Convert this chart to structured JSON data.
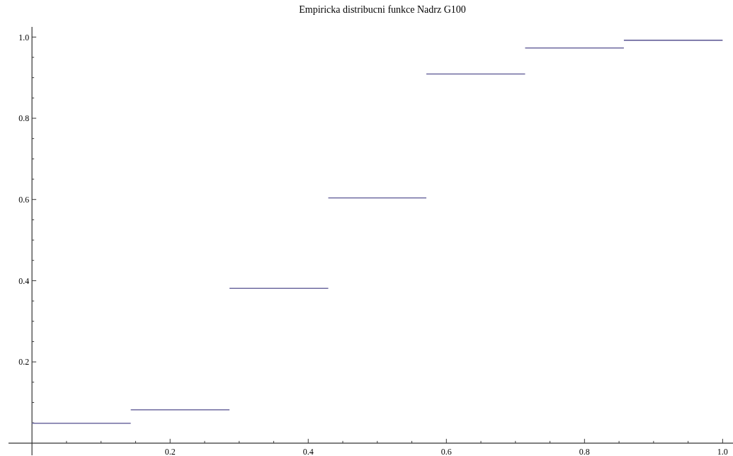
{
  "chart_data": {
    "type": "line",
    "title": "Empiricka distribucni funkce Nadrz G100",
    "series": [
      {
        "color": "#6e6aa0",
        "x": [
          0,
          0.143
        ],
        "values": [
          0.049,
          0.049
        ]
      },
      {
        "color": "#6e6aa0",
        "x": [
          0.143,
          0.286
        ],
        "values": [
          0.082,
          0.082
        ]
      },
      {
        "color": "#6e6aa0",
        "x": [
          0.286,
          0.429
        ],
        "values": [
          0.381,
          0.381
        ]
      },
      {
        "color": "#6e6aa0",
        "x": [
          0.429,
          0.571
        ],
        "values": [
          0.604,
          0.604
        ]
      },
      {
        "color": "#6e6aa0",
        "x": [
          0.571,
          0.714
        ],
        "values": [
          0.909,
          0.909
        ]
      },
      {
        "color": "#6e6aa0",
        "x": [
          0.714,
          0.857
        ],
        "values": [
          0.973,
          0.973
        ]
      },
      {
        "color": "#6e6aa0",
        "x": [
          0.857,
          1
        ],
        "values": [
          0.992,
          0.992
        ]
      }
    ],
    "xlim": [
      -0.034,
      1.015
    ],
    "ylim": [
      -0.03,
      1.025
    ],
    "xticks": [
      {
        "value": 0.05,
        "label": null
      },
      {
        "value": 0.1,
        "label": null
      },
      {
        "value": 0.15,
        "label": null
      },
      0.2,
      {
        "value": 0.25,
        "label": null
      },
      {
        "value": 0.3,
        "label": null
      },
      {
        "value": 0.35,
        "label": null
      },
      0.4,
      {
        "value": 0.45,
        "label": null
      },
      {
        "value": 0.5,
        "label": null
      },
      {
        "value": 0.55,
        "label": null
      },
      0.6,
      {
        "value": 0.65,
        "label": null
      },
      {
        "value": 0.7,
        "label": null
      },
      {
        "value": 0.75,
        "label": null
      },
      0.8,
      {
        "value": 0.85,
        "label": null
      },
      {
        "value": 0.9,
        "label": null
      },
      {
        "value": 0.95,
        "label": null
      },
      {
        "value": 1,
        "label": "1.0"
      }
    ],
    "yticks": [
      {
        "value": 0.05,
        "label": null
      },
      {
        "value": 0.1,
        "label": null
      },
      {
        "value": 0.15,
        "label": null
      },
      0.2,
      {
        "value": 0.25,
        "label": null
      },
      {
        "value": 0.3,
        "label": null
      },
      {
        "value": 0.35,
        "label": null
      },
      0.4,
      {
        "value": 0.45,
        "label": null
      },
      {
        "value": 0.5,
        "label": null
      },
      {
        "value": 0.55,
        "label": null
      },
      0.6,
      {
        "value": 0.65,
        "label": null
      },
      {
        "value": 0.7,
        "label": null
      },
      {
        "value": 0.75,
        "label": null
      },
      0.8,
      {
        "value": 0.85,
        "label": null
      },
      {
        "value": 0.9,
        "label": null
      },
      {
        "value": 0.95,
        "label": null
      },
      {
        "value": 1,
        "label": "1.0"
      }
    ],
    "grid": false,
    "marker": "none",
    "line_style": "solid"
  }
}
